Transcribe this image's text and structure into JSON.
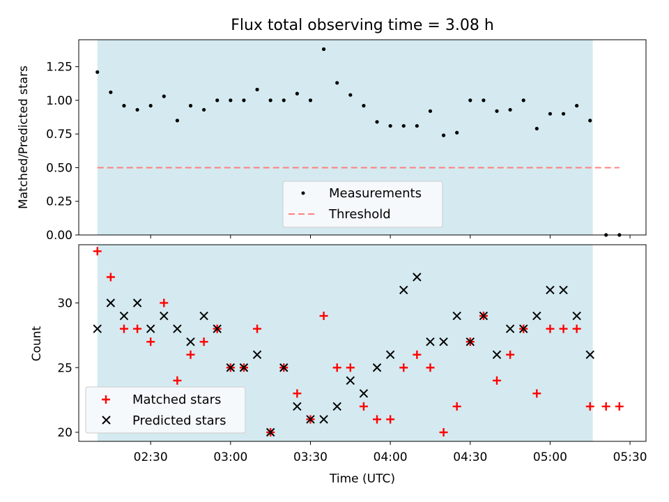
{
  "chart_data": [
    {
      "type": "scatter",
      "title": "Flux total observing time = 3.08 h",
      "ylabel": "Matched/Predicted stars",
      "xlabel": "",
      "ylim": [
        0,
        1.45
      ],
      "yticks": [
        "0.00",
        "0.25",
        "0.50",
        "0.75",
        "1.00",
        "1.25"
      ],
      "shaded_span": [
        "02:10",
        "05:16"
      ],
      "series": [
        {
          "name": "Measurements",
          "x": [
            "02:10",
            "02:15",
            "02:20",
            "02:25",
            "02:30",
            "02:35",
            "02:40",
            "02:45",
            "02:50",
            "02:55",
            "03:00",
            "03:05",
            "03:10",
            "03:15",
            "03:20",
            "03:25",
            "03:30",
            "03:35",
            "03:40",
            "03:45",
            "03:50",
            "03:55",
            "04:00",
            "04:05",
            "04:10",
            "04:15",
            "04:20",
            "04:25",
            "04:30",
            "04:35",
            "04:40",
            "04:45",
            "04:50",
            "04:55",
            "05:00",
            "05:05",
            "05:10",
            "05:15",
            "05:21",
            "05:26"
          ],
          "values": [
            1.21,
            1.06,
            0.96,
            0.93,
            0.96,
            1.03,
            0.85,
            0.96,
            0.93,
            1.0,
            1.0,
            1.0,
            1.08,
            1.0,
            1.0,
            1.05,
            1.0,
            1.38,
            1.13,
            1.04,
            0.96,
            0.84,
            0.81,
            0.81,
            0.81,
            0.92,
            0.74,
            0.76,
            1.0,
            1.0,
            0.92,
            0.93,
            1.0,
            0.79,
            0.9,
            0.9,
            0.96,
            0.85,
            0.0,
            0.0
          ]
        },
        {
          "name": "Threshold",
          "x": [
            "02:10",
            "05:26"
          ],
          "values": [
            0.5,
            0.5
          ]
        }
      ],
      "legend": "lower-center"
    },
    {
      "type": "scatter",
      "xlabel": "Time (UTC)",
      "ylabel": "Count",
      "ylim": [
        19.3,
        34.5
      ],
      "yticks": [
        "20",
        "25",
        "30"
      ],
      "xticks": [
        "02:30",
        "03:00",
        "03:30",
        "04:00",
        "04:30",
        "05:00",
        "05:30"
      ],
      "shaded_span": [
        "02:10",
        "05:16"
      ],
      "series": [
        {
          "name": "Matched stars",
          "x": [
            "02:10",
            "02:15",
            "02:20",
            "02:25",
            "02:30",
            "02:35",
            "02:40",
            "02:45",
            "02:50",
            "02:55",
            "03:00",
            "03:05",
            "03:10",
            "03:15",
            "03:20",
            "03:25",
            "03:30",
            "03:35",
            "03:40",
            "03:45",
            "03:50",
            "03:55",
            "04:00",
            "04:05",
            "04:10",
            "04:15",
            "04:20",
            "04:25",
            "04:30",
            "04:35",
            "04:40",
            "04:45",
            "04:50",
            "04:55",
            "05:00",
            "05:05",
            "05:10",
            "05:15",
            "05:21",
            "05:26"
          ],
          "values": [
            34,
            32,
            28,
            28,
            27,
            30,
            24,
            26,
            27,
            28,
            25,
            25,
            28,
            20,
            25,
            23,
            21,
            29,
            25,
            25,
            22,
            21,
            21,
            25,
            26,
            25,
            20,
            22,
            27,
            29,
            24,
            26,
            28,
            23,
            28,
            28,
            28,
            22,
            22,
            22
          ]
        },
        {
          "name": "Predicted stars",
          "x": [
            "02:10",
            "02:15",
            "02:20",
            "02:25",
            "02:30",
            "02:35",
            "02:40",
            "02:45",
            "02:50",
            "02:55",
            "03:00",
            "03:05",
            "03:10",
            "03:15",
            "03:20",
            "03:25",
            "03:30",
            "03:35",
            "03:40",
            "03:45",
            "03:50",
            "03:55",
            "04:00",
            "04:05",
            "04:10",
            "04:15",
            "04:20",
            "04:25",
            "04:30",
            "04:35",
            "04:40",
            "04:45",
            "04:50",
            "04:55",
            "05:00",
            "05:05",
            "05:10",
            "05:15"
          ],
          "values": [
            28,
            30,
            29,
            30,
            28,
            29,
            28,
            27,
            29,
            28,
            25,
            25,
            26,
            20,
            25,
            22,
            21,
            21,
            22,
            24,
            23,
            25,
            26,
            31,
            32,
            27,
            27,
            29,
            27,
            29,
            26,
            28,
            28,
            29,
            31,
            31,
            29,
            26
          ]
        }
      ],
      "legend": "lower-left"
    }
  ],
  "colors": {
    "shade": "#d4eaf0",
    "measurements": "#000000",
    "threshold": "#ff7f7f",
    "matched": "#ff0000",
    "predicted": "#000000"
  }
}
